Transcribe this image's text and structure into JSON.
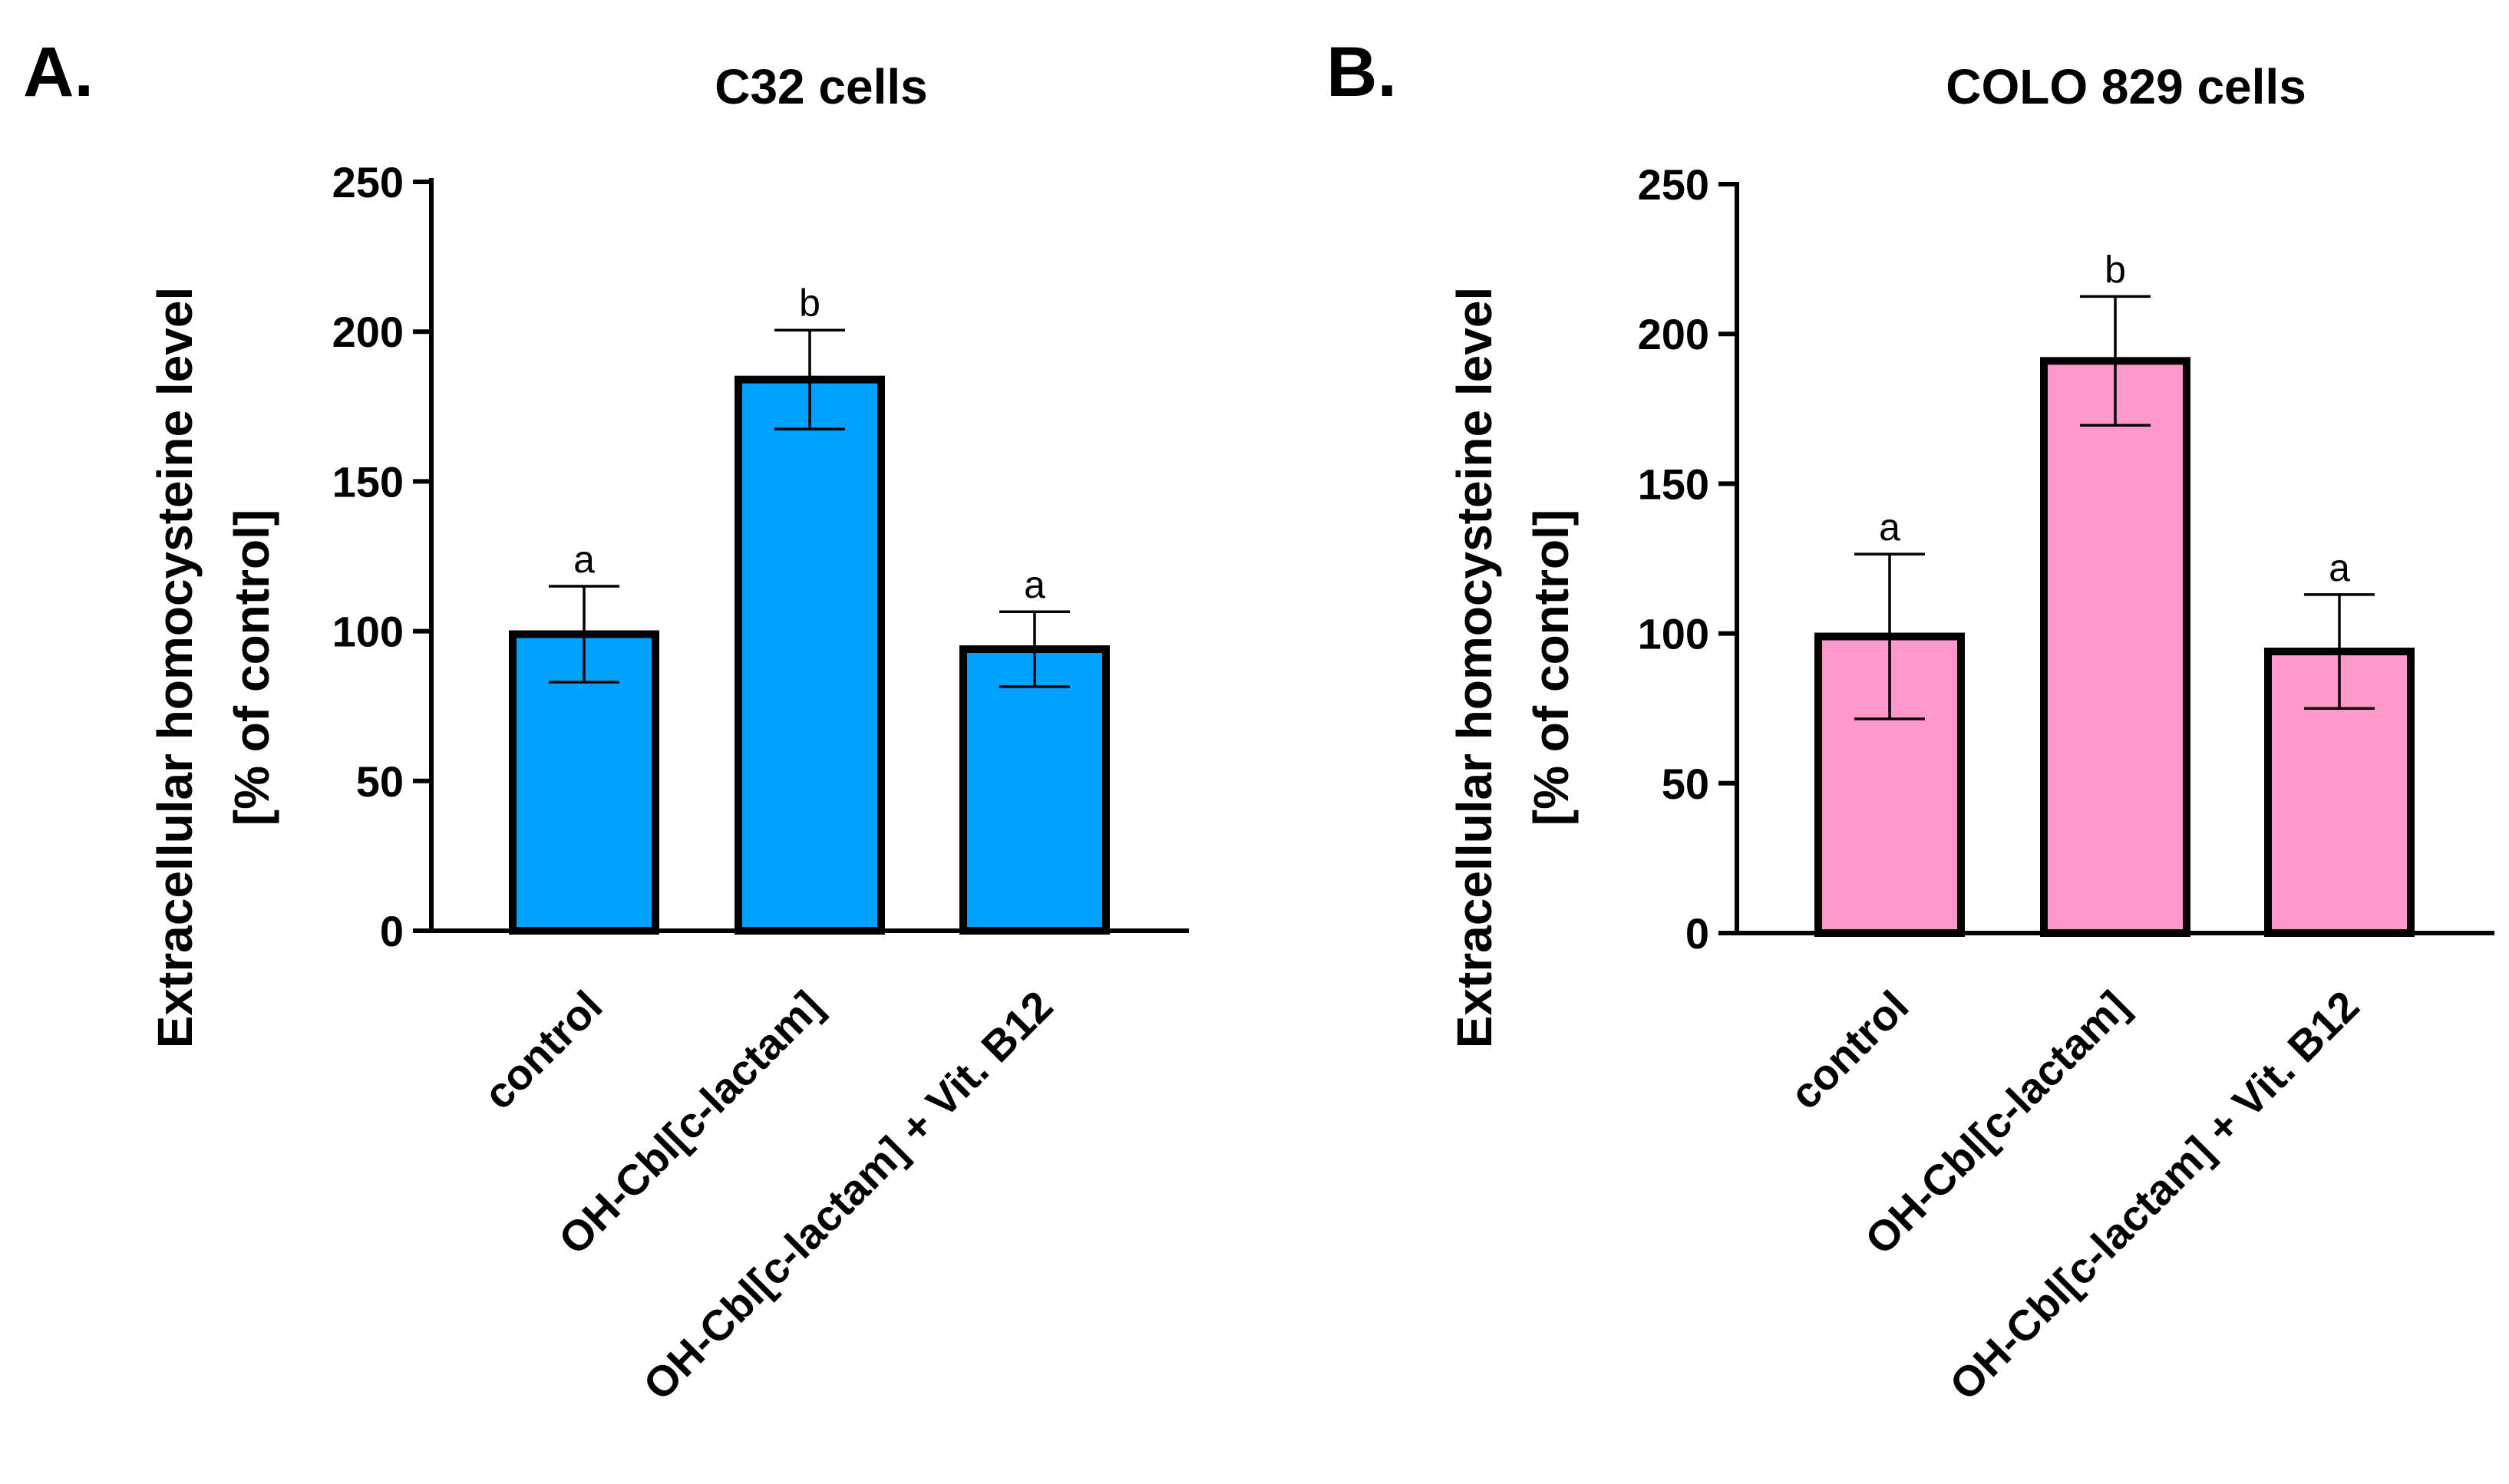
{
  "chart_data": [
    {
      "panel": "A.",
      "type": "bar",
      "title": "C32 cells",
      "ylabel_line1": "Extracellular homocysteine level",
      "ylabel_line2": "[% of control]",
      "xlabel": "",
      "categories": [
        "control",
        "OH-Cbl[c-lactam]",
        "OH-Cbl[c-lactam] + Vit. B12"
      ],
      "values": [
        99,
        184,
        94
      ],
      "errors": [
        16,
        16.5,
        12.5
      ],
      "significance": [
        "a",
        "b",
        "a"
      ],
      "ylim": [
        0,
        250
      ],
      "yticks": [
        0,
        50,
        100,
        150,
        200,
        250
      ],
      "bar_color": "#00A2FF",
      "grid": false
    },
    {
      "panel": "B.",
      "type": "bar",
      "title": "COLO 829 cells",
      "ylabel_line1": "Extracellular homocysteine level",
      "ylabel_line2": "[% of control]",
      "xlabel": "",
      "categories": [
        "control",
        "OH-Cbl[c-lactam]",
        "OH-Cbl[c-lactam] + Vit. B12"
      ],
      "values": [
        99,
        191,
        94
      ],
      "errors": [
        27.5,
        21.5,
        19
      ],
      "significance": [
        "a",
        "b",
        "a"
      ],
      "ylim": [
        0,
        250
      ],
      "yticks": [
        0,
        50,
        100,
        150,
        200,
        250
      ],
      "bar_color": "#FF99CC",
      "grid": false
    }
  ]
}
